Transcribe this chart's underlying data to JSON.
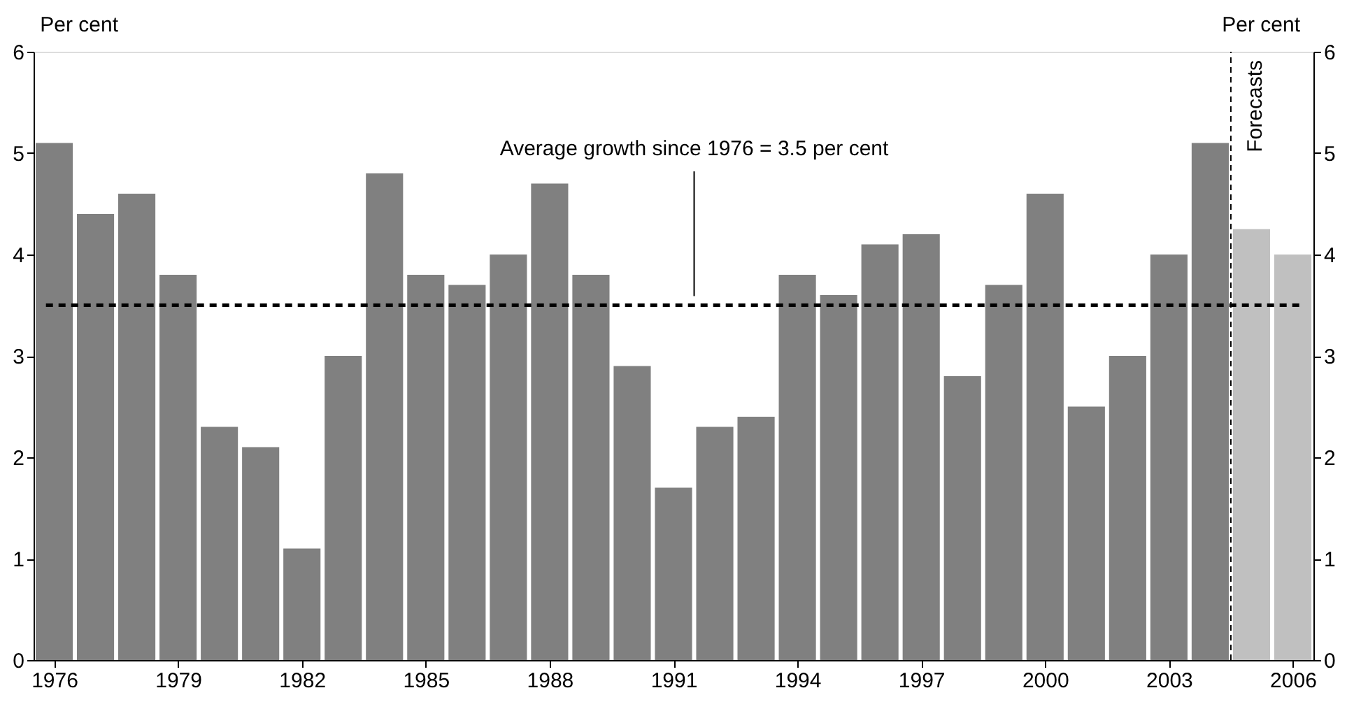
{
  "chart_data": {
    "type": "bar",
    "ylabel": "Per cent",
    "y2label": "Per cent",
    "categories": [
      "1976",
      null,
      null,
      "1979",
      null,
      null,
      "1982",
      null,
      null,
      "1985",
      null,
      null,
      "1988",
      null,
      null,
      "1991",
      null,
      null,
      "1994",
      null,
      null,
      "1997",
      null,
      null,
      "2000",
      null,
      null,
      "2003",
      null,
      null,
      "2006"
    ],
    "values": [
      5.1,
      4.4,
      4.6,
      3.8,
      2.3,
      2.1,
      1.1,
      3.0,
      4.8,
      3.8,
      3.7,
      4.0,
      4.7,
      3.8,
      2.9,
      1.7,
      2.3,
      2.4,
      3.8,
      3.6,
      4.1,
      4.2,
      2.8,
      3.7,
      4.6,
      2.5,
      3.0,
      4.0,
      5.1,
      4.25,
      4.0
    ],
    "colors": [
      "#808080",
      "#808080",
      "#808080",
      "#808080",
      "#808080",
      "#808080",
      "#808080",
      "#808080",
      "#808080",
      "#808080",
      "#808080",
      "#808080",
      "#808080",
      "#808080",
      "#808080",
      "#808080",
      "#808080",
      "#808080",
      "#808080",
      "#808080",
      "#808080",
      "#808080",
      "#808080",
      "#808080",
      "#808080",
      "#808080",
      "#808080",
      "#808080",
      "#808080",
      "#c0c0c0",
      "#c0c0c0"
    ],
    "ylim": [
      0,
      6
    ],
    "yticks": [
      0,
      1,
      2,
      3,
      4,
      5,
      6
    ],
    "y2lim": [
      0,
      6
    ],
    "y2ticks": [
      0,
      1,
      2,
      3,
      4,
      5,
      6
    ],
    "ref_lines": [
      {
        "axis": "y",
        "value": 3.5,
        "label": "Average growth since 1976 = 3.5 per cent",
        "line_style": "dashed",
        "color": "#000000"
      }
    ],
    "annotations": [
      "Forecasts"
    ],
    "grid": false
  }
}
